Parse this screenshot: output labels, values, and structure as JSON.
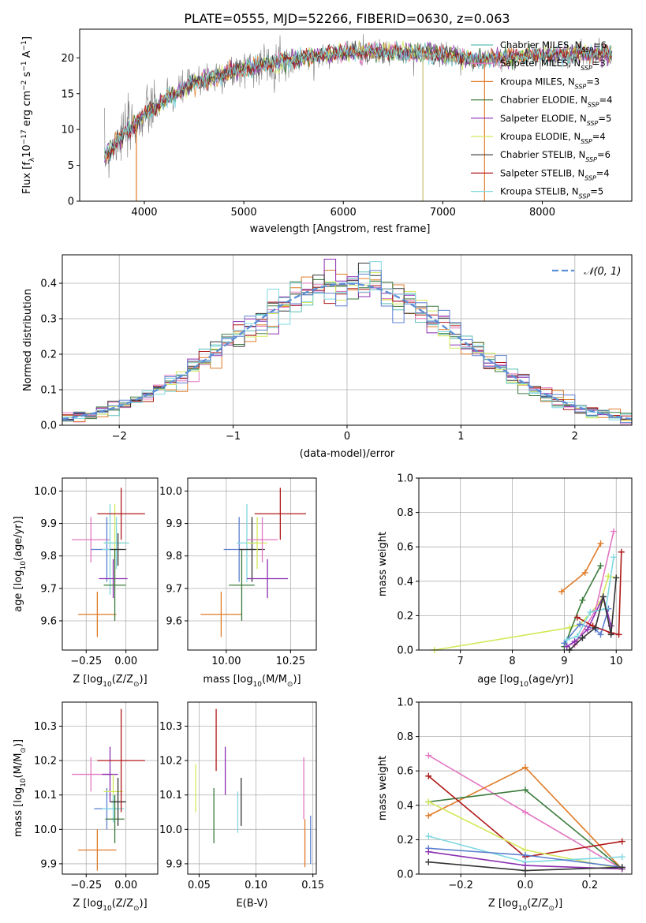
{
  "figure_title": "PLATE=0555, MJD=52266, FIBERID=0630, z=0.063",
  "chart_data": [
    {
      "id": "spectrum",
      "type": "line",
      "xlabel": "wavelength [Angstrom, rest frame]",
      "ylabel": "Flux [f_λ10^-17 erg cm^-2 s^-1 A^-1]",
      "xlim": [
        3350,
        8900
      ],
      "ylim": [
        0,
        24
      ],
      "xticks": [
        4000,
        5000,
        6000,
        7000,
        8000
      ],
      "yticks": [
        0,
        5,
        10,
        15,
        20
      ],
      "legend_position": "upper right",
      "continuum": {
        "x": [
          3600,
          3700,
          3800,
          3900,
          4000,
          4200,
          4500,
          5000,
          5500,
          6000,
          6500,
          7000,
          7300,
          7600,
          8000,
          8400,
          8700
        ],
        "y": [
          6,
          8,
          9.5,
          10.5,
          12,
          14,
          16.5,
          18.5,
          19.8,
          20.8,
          20.8,
          20.5,
          19.8,
          20,
          20.4,
          20.5,
          20.6
        ]
      },
      "series": [
        {
          "name": "Chabrier MILES, N_SSP=6",
          "color": "#5bbfb5"
        },
        {
          "name": "Salpeter MILES, N_SSP=3",
          "color": "#e377c2"
        },
        {
          "name": "Kroupa MILES, N_SSP=3",
          "color": "#e07b28"
        },
        {
          "name": "Chabrier ELODIE, N_SSP=4",
          "color": "#3a7a3a"
        },
        {
          "name": "Salpeter ELODIE, N_SSP=5",
          "color": "#8b2fb0"
        },
        {
          "name": "Kroupa ELODIE, N_SSP=4",
          "color": "#d4e85a"
        },
        {
          "name": "Chabrier STELIB, N_SSP=6",
          "color": "#333333"
        },
        {
          "name": "Salpeter STELIB, N_SSP=4",
          "color": "#b01818"
        },
        {
          "name": "Kroupa STELIB, N_SSP=5",
          "color": "#7fd8e0"
        }
      ],
      "model_cutoffs": [
        {
          "color": "#e07b28",
          "x": 3920,
          "to": 7420
        },
        {
          "color": "#c8c070",
          "x": 6800,
          "to": 6800
        }
      ]
    },
    {
      "id": "residuals",
      "type": "step",
      "xlabel": "(data-model)/error",
      "ylabel": "Normed distribution",
      "xlim": [
        -2.5,
        2.5
      ],
      "ylim": [
        0,
        0.48
      ],
      "xticks": [
        -2,
        -1,
        0,
        1,
        2
      ],
      "yticks": [
        0.0,
        0.1,
        0.2,
        0.3,
        0.4
      ],
      "legend": "𝒩(0, 1)",
      "gaussian": {
        "mean": 0,
        "sigma": 1,
        "color": "#5b8fd6"
      },
      "hist_colors": [
        "#5bbfb5",
        "#e377c2",
        "#e07b28",
        "#3a7a3a",
        "#8b2fb0",
        "#d4e85a",
        "#333333",
        "#b01818",
        "#7fd8e0",
        "#5b7fcf"
      ]
    },
    {
      "id": "age_vs_Z",
      "type": "errorbar",
      "xlabel": "Z [log10(Z/Z☉)]",
      "ylabel": "age [log10(age/yr)]",
      "xlim": [
        -0.4,
        0.2
      ],
      "ylim": [
        9.51,
        10.04
      ],
      "xticks": [
        -0.25,
        0.0
      ],
      "yticks": [
        9.6,
        9.7,
        9.8,
        9.9,
        10.0
      ],
      "points": [
        {
          "x": -0.22,
          "xerr": 0.12,
          "y": 9.85,
          "yerr": 0.07,
          "color": "#e377c2"
        },
        {
          "x": -0.18,
          "xerr": 0.12,
          "y": 9.62,
          "yerr": 0.07,
          "color": "#e07b28"
        },
        {
          "x": -0.12,
          "xerr": 0.1,
          "y": 9.82,
          "yerr": 0.1,
          "color": "#5b7fcf"
        },
        {
          "x": -0.1,
          "xerr": 0.05,
          "y": 9.82,
          "yerr": 0.14,
          "color": "#7fd8e0"
        },
        {
          "x": -0.08,
          "xerr": 0.09,
          "y": 9.73,
          "yerr": 0.06,
          "color": "#8b2fb0"
        },
        {
          "x": -0.07,
          "xerr": 0.07,
          "y": 9.84,
          "yerr": 0.12,
          "color": "#d4e85a"
        },
        {
          "x": -0.07,
          "xerr": 0.07,
          "y": 9.71,
          "yerr": 0.11,
          "color": "#3a7a3a"
        },
        {
          "x": -0.06,
          "xerr": 0.08,
          "y": 9.84,
          "yerr": 0.08,
          "color": "#7fd8e0"
        },
        {
          "x": -0.05,
          "xerr": 0.05,
          "y": 9.82,
          "yerr": 0.05,
          "color": "#333333"
        },
        {
          "x": -0.03,
          "xerr": 0.15,
          "y": 9.93,
          "yerr": 0.08,
          "color": "#b01818"
        }
      ]
    },
    {
      "id": "age_vs_mass",
      "type": "errorbar",
      "xlabel": "mass [log10(M/M☉)]",
      "ylabel": "",
      "xlim": [
        9.85,
        10.35
      ],
      "ylim": [
        9.51,
        10.04
      ],
      "xticks": [
        10.0,
        10.25
      ],
      "yticks": [
        9.6,
        9.7,
        9.8,
        9.9,
        10.0
      ],
      "points": [
        {
          "x": 9.98,
          "xerr": 0.08,
          "y": 9.62,
          "yerr": 0.07,
          "color": "#e07b28"
        },
        {
          "x": 10.05,
          "xerr": 0.06,
          "y": 9.82,
          "yerr": 0.1,
          "color": "#5b7fcf"
        },
        {
          "x": 10.06,
          "xerr": 0.05,
          "y": 9.71,
          "yerr": 0.11,
          "color": "#3a7a3a"
        },
        {
          "x": 10.08,
          "xerr": 0.04,
          "y": 9.84,
          "yerr": 0.12,
          "color": "#7fd8e0"
        },
        {
          "x": 10.1,
          "xerr": 0.05,
          "y": 9.82,
          "yerr": 0.1,
          "color": "#333333"
        },
        {
          "x": 10.12,
          "xerr": 0.04,
          "y": 9.84,
          "yerr": 0.08,
          "color": "#d4e85a"
        },
        {
          "x": 10.14,
          "xerr": 0.06,
          "y": 9.85,
          "yerr": 0.07,
          "color": "#e377c2"
        },
        {
          "x": 10.16,
          "xerr": 0.08,
          "y": 9.73,
          "yerr": 0.06,
          "color": "#8b2fb0"
        },
        {
          "x": 10.21,
          "xerr": 0.1,
          "y": 9.93,
          "yerr": 0.08,
          "color": "#b01818"
        }
      ]
    },
    {
      "id": "weight_vs_age",
      "type": "line",
      "xlabel": "age [log10(age/yr)]",
      "ylabel": "mass weight",
      "xlim": [
        6.2,
        10.3
      ],
      "ylim": [
        0,
        1
      ],
      "xticks": [
        7,
        8,
        9,
        10
      ],
      "yticks": [
        0.0,
        0.2,
        0.4,
        0.6,
        0.8,
        1.0
      ],
      "lines": [
        {
          "color": "#d4e85a",
          "x": [
            6.5,
            9.1,
            9.3,
            9.7,
            9.85,
            10.0
          ],
          "y": [
            0.0,
            0.13,
            0.15,
            0.28,
            0.43,
            0.42
          ]
        },
        {
          "color": "#e07b28",
          "x": [
            8.95,
            9.4,
            9.7
          ],
          "y": [
            0.34,
            0.45,
            0.62
          ]
        },
        {
          "color": "#e377c2",
          "x": [
            9.2,
            9.6,
            9.95
          ],
          "y": [
            0.03,
            0.23,
            0.69
          ]
        },
        {
          "color": "#3a7a3a",
          "x": [
            9.0,
            9.35,
            9.7
          ],
          "y": [
            0.02,
            0.29,
            0.49
          ]
        },
        {
          "color": "#5b7fcf",
          "x": [
            9.0,
            9.3,
            9.6,
            9.7,
            9.85
          ],
          "y": [
            0.04,
            0.15,
            0.12,
            0.09,
            0.24
          ]
        },
        {
          "color": "#8b2fb0",
          "x": [
            9.05,
            9.2,
            9.45,
            9.75,
            9.9
          ],
          "y": [
            0.02,
            0.05,
            0.12,
            0.31,
            0.14
          ]
        },
        {
          "color": "#b01818",
          "x": [
            9.25,
            9.55,
            9.9,
            10.05,
            10.1
          ],
          "y": [
            0.19,
            0.14,
            0.1,
            0.09,
            0.57
          ]
        },
        {
          "color": "#7fd8e0",
          "x": [
            9.05,
            9.25,
            9.5,
            9.8,
            9.95
          ],
          "y": [
            0.06,
            0.08,
            0.22,
            0.24,
            0.54
          ]
        },
        {
          "color": "#333333",
          "x": [
            9.1,
            9.35,
            9.6,
            9.75,
            9.9,
            10.0
          ],
          "y": [
            0.0,
            0.07,
            0.13,
            0.31,
            0.09,
            0.42
          ]
        }
      ]
    },
    {
      "id": "mass_vs_Z",
      "type": "errorbar",
      "xlabel": "Z [log10(Z/Z☉)]",
      "ylabel": "mass [log10(M/M☉)]",
      "xlim": [
        -0.4,
        0.2
      ],
      "ylim": [
        9.87,
        10.37
      ],
      "xticks": [
        -0.25,
        0.0
      ],
      "yticks": [
        9.9,
        10.0,
        10.1,
        10.2,
        10.3
      ],
      "points": [
        {
          "x": -0.22,
          "xerr": 0.12,
          "y": 10.16,
          "yerr": 0.05,
          "color": "#e377c2"
        },
        {
          "x": -0.18,
          "xerr": 0.12,
          "y": 9.94,
          "yerr": 0.06,
          "color": "#e07b28"
        },
        {
          "x": -0.12,
          "xerr": 0.08,
          "y": 10.06,
          "yerr": 0.06,
          "color": "#5b7fcf"
        },
        {
          "x": -0.1,
          "xerr": 0.05,
          "y": 10.16,
          "yerr": 0.08,
          "color": "#8b2fb0"
        },
        {
          "x": -0.08,
          "xerr": 0.06,
          "y": 10.11,
          "yerr": 0.05,
          "color": "#d4e85a"
        },
        {
          "x": -0.08,
          "xerr": 0.07,
          "y": 10.06,
          "yerr": 0.04,
          "color": "#7fd8e0"
        },
        {
          "x": -0.07,
          "xerr": 0.06,
          "y": 10.03,
          "yerr": 0.07,
          "color": "#3a7a3a"
        },
        {
          "x": -0.05,
          "xerr": 0.05,
          "y": 10.08,
          "yerr": 0.07,
          "color": "#333333"
        },
        {
          "x": -0.03,
          "xerr": 0.15,
          "y": 10.2,
          "yerr": 0.15,
          "color": "#b01818"
        }
      ]
    },
    {
      "id": "mass_vs_ebv",
      "type": "errorbar",
      "xlabel": "E(B-V)",
      "ylabel": "",
      "xlim": [
        0.04,
        0.153
      ],
      "ylim": [
        9.87,
        10.37
      ],
      "xticks": [
        0.05,
        0.1,
        0.15
      ],
      "yticks": [
        9.9,
        10.0,
        10.1,
        10.2,
        10.3
      ],
      "points": [
        {
          "x": 0.047,
          "xerr": 0,
          "y": 10.12,
          "yerr": 0.07,
          "color": "#d4e85a"
        },
        {
          "x": 0.063,
          "xerr": 0,
          "y": 10.04,
          "yerr": 0.08,
          "color": "#3a7a3a"
        },
        {
          "x": 0.065,
          "xerr": 0,
          "y": 10.26,
          "yerr": 0.09,
          "color": "#b01818"
        },
        {
          "x": 0.073,
          "xerr": 0,
          "y": 10.17,
          "yerr": 0.07,
          "color": "#8b2fb0"
        },
        {
          "x": 0.084,
          "xerr": 0,
          "y": 10.05,
          "yerr": 0.06,
          "color": "#7fd8e0"
        },
        {
          "x": 0.087,
          "xerr": 0,
          "y": 10.08,
          "yerr": 0.07,
          "color": "#333333"
        },
        {
          "x": 0.142,
          "xerr": 0,
          "y": 10.12,
          "yerr": 0.09,
          "color": "#e377c2"
        },
        {
          "x": 0.143,
          "xerr": 0,
          "y": 9.96,
          "yerr": 0.07,
          "color": "#e07b28"
        },
        {
          "x": 0.148,
          "xerr": 0,
          "y": 9.97,
          "yerr": 0.07,
          "color": "#5b7fcf"
        }
      ]
    },
    {
      "id": "weight_vs_Z",
      "type": "line",
      "xlabel": "Z [log10(Z/Z☉)]",
      "ylabel": "mass weight",
      "xlim": [
        -0.33,
        0.33
      ],
      "ylim": [
        0,
        1
      ],
      "xticks": [
        -0.2,
        0.0,
        0.2
      ],
      "yticks": [
        0.0,
        0.2,
        0.4,
        0.6,
        0.8,
        1.0
      ],
      "lines": [
        {
          "color": "#e377c2",
          "x": [
            -0.3,
            0.0,
            0.3
          ],
          "y": [
            0.69,
            0.36,
            0.03
          ]
        },
        {
          "color": "#e07b28",
          "x": [
            -0.3,
            0.0,
            0.3
          ],
          "y": [
            0.34,
            0.62,
            0.03
          ]
        },
        {
          "color": "#3a7a3a",
          "x": [
            -0.3,
            0.0,
            0.3
          ],
          "y": [
            0.42,
            0.49,
            0.03
          ]
        },
        {
          "color": "#b01818",
          "x": [
            -0.3,
            0.0,
            0.3
          ],
          "y": [
            0.57,
            0.1,
            0.19
          ]
        },
        {
          "color": "#d4e85a",
          "x": [
            -0.3,
            0.0,
            0.3
          ],
          "y": [
            0.42,
            0.14,
            0.03
          ]
        },
        {
          "color": "#7fd8e0",
          "x": [
            -0.3,
            0.0,
            0.3
          ],
          "y": [
            0.22,
            0.07,
            0.1
          ]
        },
        {
          "color": "#5b7fcf",
          "x": [
            -0.3,
            0.0,
            0.3
          ],
          "y": [
            0.15,
            0.11,
            0.04
          ]
        },
        {
          "color": "#8b2fb0",
          "x": [
            -0.3,
            0.0,
            0.3
          ],
          "y": [
            0.13,
            0.05,
            0.03
          ]
        },
        {
          "color": "#333333",
          "x": [
            -0.3,
            0.0,
            0.3
          ],
          "y": [
            0.07,
            0.02,
            0.04
          ]
        }
      ]
    }
  ]
}
